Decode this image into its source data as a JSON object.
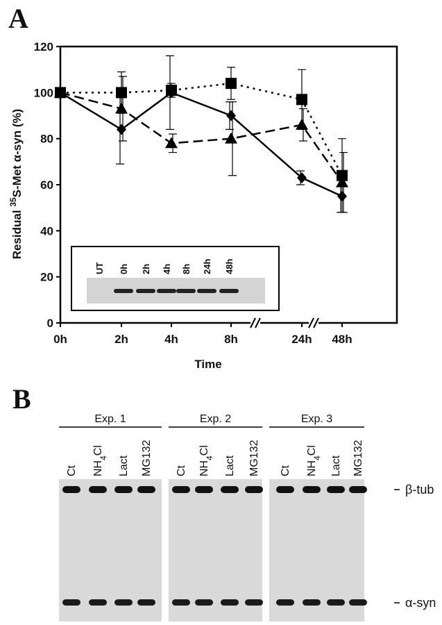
{
  "panel_a": "A",
  "chart_data": {
    "type": "line",
    "xlabel": "Time",
    "ylabel": [
      "Residual ",
      "35",
      "S-Met α-syn (%)"
    ],
    "categories": [
      "0h",
      "2h",
      "4h",
      "8h",
      "24h",
      "48h"
    ],
    "ylim": [
      0,
      120
    ],
    "yticks": [
      0,
      20,
      40,
      60,
      80,
      100,
      120
    ],
    "series": [
      {
        "color": "#000000",
        "marker": "diamond",
        "line_style": "solid",
        "values": [
          100,
          84,
          100,
          90,
          63,
          55
        ],
        "errors": [
          0,
          15,
          16,
          6,
          3,
          7
        ]
      },
      {
        "color": "#000000",
        "marker": "square",
        "line_style": "dotted",
        "values": [
          100,
          100,
          101,
          104,
          97,
          64
        ],
        "errors": [
          0,
          9,
          3,
          7,
          13,
          16
        ]
      },
      {
        "color": "#000000",
        "marker": "triangle",
        "line_style": "dashed",
        "values": [
          100,
          93,
          78,
          80,
          86,
          61
        ],
        "errors": [
          0,
          14,
          4,
          16,
          7,
          13
        ]
      }
    ],
    "inset_lanes": [
      "UT",
      "0h",
      "2h",
      "4h",
      "8h",
      "24h",
      "48h"
    ]
  },
  "panel_b": {
    "letter": "B",
    "groups": [
      {
        "title": "Exp. 1",
        "lanes": [
          [
            "Ct"
          ],
          [
            "NH",
            "4",
            "Cl"
          ],
          [
            "Lact"
          ],
          [
            "MG132"
          ]
        ]
      },
      {
        "title": "Exp. 2",
        "lanes": [
          [
            "Ct"
          ],
          [
            "NH",
            "4",
            "Cl"
          ],
          [
            "Lact"
          ],
          [
            "MG132"
          ]
        ]
      },
      {
        "title": "Exp. 3",
        "lanes": [
          [
            "Ct"
          ],
          [
            "NH",
            "4",
            "Cl"
          ],
          [
            "Lact"
          ],
          [
            "MG132"
          ]
        ]
      }
    ],
    "bands": [
      "β-tub",
      "α-syn"
    ]
  }
}
